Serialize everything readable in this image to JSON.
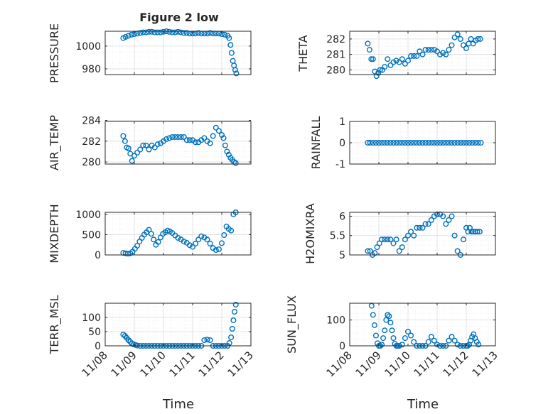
{
  "figure_title": "Figure 2 low",
  "x_axis_label": "Time",
  "x_tick_labels": [
    "11/08",
    "11/09",
    "11/10",
    "11/11",
    "11/12",
    "11/13"
  ],
  "colors": {
    "marker": "#0072BD",
    "axis": "#262626",
    "grid": "#dcdcdc",
    "minor_grid": "#ececec"
  },
  "chart_data": [
    {
      "type": "scatter",
      "name": "pressure",
      "ylabel": "PRESSURE",
      "yticks": [
        980,
        1000
      ],
      "ylim": [
        975,
        1013
      ],
      "xlim": [
        0,
        5
      ],
      "x": [
        0.62,
        0.7,
        0.8,
        0.9,
        1.0,
        1.1,
        1.2,
        1.3,
        1.4,
        1.5,
        1.6,
        1.7,
        1.8,
        1.9,
        2.0,
        2.1,
        2.2,
        2.3,
        2.4,
        2.5,
        2.6,
        2.7,
        2.8,
        2.9,
        3.0,
        3.1,
        3.2,
        3.3,
        3.4,
        3.5,
        3.6,
        3.7,
        3.8,
        3.9,
        4.0,
        4.1,
        4.2,
        4.25,
        4.3,
        4.34,
        4.38,
        4.42,
        4.46,
        4.5
      ],
      "y": [
        1007,
        1008,
        1009,
        1010,
        1010.5,
        1011,
        1011.5,
        1012,
        1012,
        1012.5,
        1012.5,
        1012,
        1012,
        1012,
        1012.5,
        1013,
        1012.5,
        1012,
        1012,
        1012.5,
        1012,
        1011.5,
        1011.5,
        1011,
        1011,
        1011,
        1011.5,
        1011,
        1011,
        1011,
        1011.5,
        1011,
        1011,
        1011,
        1010.5,
        1010,
        1009,
        1007,
        1001,
        994,
        987,
        983,
        979,
        976
      ]
    },
    {
      "type": "scatter",
      "name": "theta",
      "ylabel": "THETA",
      "yticks": [
        280,
        281,
        282
      ],
      "ylim": [
        279.7,
        282.5
      ],
      "xlim": [
        0,
        5
      ],
      "x": [
        0.62,
        0.68,
        0.74,
        0.8,
        0.86,
        0.92,
        0.98,
        1.04,
        1.12,
        1.2,
        1.3,
        1.4,
        1.5,
        1.6,
        1.7,
        1.8,
        1.9,
        2.0,
        2.1,
        2.2,
        2.3,
        2.4,
        2.5,
        2.6,
        2.7,
        2.8,
        2.9,
        3.0,
        3.1,
        3.2,
        3.3,
        3.4,
        3.5,
        3.6,
        3.7,
        3.8,
        3.9,
        4.0,
        4.08,
        4.16,
        4.24,
        4.32,
        4.4,
        4.48
      ],
      "y": [
        281.7,
        281.3,
        280.7,
        280.7,
        279.9,
        279.6,
        279.8,
        280.0,
        280.0,
        280.2,
        280.7,
        280.3,
        280.5,
        280.6,
        280.5,
        280.7,
        280.4,
        280.6,
        280.9,
        280.9,
        280.9,
        281.2,
        281.0,
        281.3,
        281.3,
        281.3,
        281.3,
        281.2,
        281.0,
        281.1,
        281.0,
        281.3,
        281.6,
        282.1,
        282.3,
        282.0,
        281.6,
        281.4,
        281.7,
        282.0,
        281.7,
        281.9,
        282.0,
        282.0
      ]
    },
    {
      "type": "scatter",
      "name": "air_temp",
      "ylabel": "AIR_TEMP",
      "yticks": [
        280,
        282,
        284
      ],
      "ylim": [
        279.8,
        283.9
      ],
      "xlim": [
        0,
        5
      ],
      "x": [
        0.62,
        0.68,
        0.74,
        0.8,
        0.86,
        0.92,
        1.0,
        1.1,
        1.2,
        1.3,
        1.4,
        1.5,
        1.6,
        1.7,
        1.8,
        1.9,
        2.0,
        2.1,
        2.2,
        2.3,
        2.4,
        2.5,
        2.6,
        2.7,
        2.8,
        2.9,
        3.0,
        3.1,
        3.2,
        3.3,
        3.4,
        3.5,
        3.6,
        3.7,
        3.8,
        3.9,
        4.0,
        4.06,
        4.12,
        4.18,
        4.24,
        4.3,
        4.36,
        4.42,
        4.48
      ],
      "y": [
        282.5,
        282.0,
        281.4,
        281.3,
        280.8,
        280.1,
        280.6,
        280.9,
        281.2,
        281.6,
        281.6,
        281.2,
        281.6,
        281.4,
        281.7,
        281.8,
        282.0,
        282.2,
        282.3,
        282.4,
        282.4,
        282.4,
        282.4,
        282.4,
        282.1,
        282.1,
        282.1,
        281.9,
        281.9,
        282.1,
        282.3,
        282.0,
        281.8,
        282.5,
        283.3,
        283.0,
        282.6,
        282.3,
        281.6,
        281.0,
        280.7,
        280.4,
        280.2,
        280.0,
        279.9
      ]
    },
    {
      "type": "scatter",
      "name": "rainfall",
      "ylabel": "RAINFALL",
      "yticks": [
        -1,
        0,
        1
      ],
      "ylim": [
        -1,
        1
      ],
      "xlim": [
        0,
        5
      ],
      "x": [
        0.62,
        0.7,
        0.8,
        0.9,
        1.0,
        1.1,
        1.2,
        1.3,
        1.4,
        1.5,
        1.6,
        1.7,
        1.8,
        1.9,
        2.0,
        2.1,
        2.2,
        2.3,
        2.4,
        2.5,
        2.6,
        2.7,
        2.8,
        2.9,
        3.0,
        3.1,
        3.2,
        3.3,
        3.4,
        3.5,
        3.6,
        3.7,
        3.8,
        3.9,
        4.0,
        4.1,
        4.2,
        4.3,
        4.4,
        4.5
      ],
      "y": [
        0,
        0,
        0,
        0,
        0,
        0,
        0,
        0,
        0,
        0,
        0,
        0,
        0,
        0,
        0,
        0,
        0,
        0,
        0,
        0,
        0,
        0,
        0,
        0,
        0,
        0,
        0,
        0,
        0,
        0,
        0,
        0,
        0,
        0,
        0,
        0,
        0,
        0,
        0,
        0
      ]
    },
    {
      "type": "scatter",
      "name": "mixdepth",
      "ylabel": "MIXDEPTH",
      "yticks": [
        0,
        500,
        1000
      ],
      "ylim": [
        0,
        1050
      ],
      "xlim": [
        0,
        5
      ],
      "x": [
        0.62,
        0.7,
        0.78,
        0.86,
        0.94,
        1.02,
        1.1,
        1.18,
        1.26,
        1.34,
        1.42,
        1.5,
        1.58,
        1.66,
        1.74,
        1.82,
        1.9,
        1.98,
        2.06,
        2.14,
        2.22,
        2.3,
        2.4,
        2.5,
        2.6,
        2.7,
        2.8,
        2.9,
        3.0,
        3.1,
        3.2,
        3.3,
        3.4,
        3.5,
        3.6,
        3.7,
        3.8,
        3.9,
        4.0,
        4.08,
        4.16,
        4.24,
        4.32,
        4.4,
        4.48
      ],
      "y": [
        50,
        40,
        30,
        40,
        80,
        150,
        230,
        330,
        420,
        500,
        560,
        620,
        520,
        380,
        250,
        320,
        430,
        520,
        560,
        600,
        580,
        540,
        480,
        420,
        380,
        330,
        300,
        240,
        200,
        280,
        380,
        460,
        430,
        380,
        280,
        170,
        120,
        140,
        290,
        490,
        700,
        640,
        600,
        1000,
        1050
      ]
    },
    {
      "type": "scatter",
      "name": "h2omixra",
      "ylabel": "H2OMIXRA",
      "yticks": [
        5,
        5.5,
        6
      ],
      "ylim": [
        5,
        6.1
      ],
      "xlim": [
        0,
        5
      ],
      "x": [
        0.62,
        0.7,
        0.78,
        0.86,
        0.94,
        1.02,
        1.1,
        1.2,
        1.3,
        1.4,
        1.5,
        1.6,
        1.7,
        1.8,
        1.9,
        2.0,
        2.1,
        2.2,
        2.3,
        2.4,
        2.5,
        2.6,
        2.7,
        2.8,
        2.9,
        3.0,
        3.1,
        3.2,
        3.3,
        3.4,
        3.5,
        3.6,
        3.7,
        3.8,
        3.9,
        4.0,
        4.06,
        4.12,
        4.18,
        4.24,
        4.3,
        4.38,
        4.46
      ],
      "y": [
        5.1,
        5.1,
        5.0,
        5.05,
        5.2,
        5.3,
        5.4,
        5.4,
        5.4,
        5.4,
        5.3,
        5.4,
        5.1,
        5.2,
        5.4,
        5.5,
        5.6,
        5.5,
        5.7,
        5.7,
        5.7,
        5.8,
        5.8,
        5.9,
        6.0,
        6.05,
        6.05,
        6.0,
        5.8,
        5.9,
        6.0,
        5.5,
        5.1,
        5.0,
        5.4,
        5.7,
        5.6,
        5.7,
        5.6,
        5.6,
        5.6,
        5.6,
        5.6
      ]
    },
    {
      "type": "scatter",
      "name": "terr_msl",
      "ylabel": "TERR_MSL",
      "yticks": [
        0,
        50,
        100
      ],
      "ylim": [
        0,
        150
      ],
      "xlim": [
        0,
        5
      ],
      "x": [
        0.62,
        0.68,
        0.74,
        0.8,
        0.86,
        0.92,
        0.98,
        1.04,
        1.1,
        1.2,
        1.3,
        1.4,
        1.5,
        1.6,
        1.7,
        1.8,
        1.9,
        2.0,
        2.1,
        2.2,
        2.3,
        2.4,
        2.5,
        2.6,
        2.7,
        2.8,
        2.9,
        3.0,
        3.1,
        3.2,
        3.3,
        3.4,
        3.5,
        3.6,
        3.7,
        3.8,
        3.9,
        4.0,
        4.1,
        4.2,
        4.26,
        4.32,
        4.36,
        4.4,
        4.44,
        4.48
      ],
      "y": [
        40,
        35,
        28,
        20,
        14,
        8,
        5,
        3,
        1,
        0,
        0,
        0,
        0,
        0,
        0,
        0,
        0,
        0,
        0,
        0,
        0,
        0,
        0,
        0,
        0,
        0,
        0,
        0,
        0,
        0,
        0,
        20,
        22,
        20,
        0,
        0,
        0,
        0,
        0,
        0,
        10,
        30,
        60,
        90,
        120,
        145
      ]
    },
    {
      "type": "scatter",
      "name": "sun_flux",
      "ylabel": "SUN_FLUX",
      "yticks": [
        0,
        100
      ],
      "ylim": [
        0,
        165
      ],
      "xlim": [
        0,
        5
      ],
      "x": [
        0.75,
        0.8,
        0.85,
        0.9,
        0.95,
        1.0,
        1.05,
        1.1,
        1.15,
        1.2,
        1.25,
        1.3,
        1.35,
        1.4,
        1.45,
        1.5,
        1.55,
        1.6,
        1.65,
        1.7,
        1.8,
        1.9,
        2.0,
        2.1,
        2.2,
        2.3,
        2.4,
        2.5,
        2.6,
        2.7,
        2.8,
        2.9,
        3.0,
        3.1,
        3.2,
        3.3,
        3.4,
        3.5,
        3.6,
        3.7,
        3.8,
        3.9,
        4.0,
        4.05,
        4.1,
        4.15,
        4.2,
        4.25,
        4.3,
        4.36,
        4.42
      ],
      "y": [
        155,
        120,
        80,
        40,
        10,
        0,
        0,
        5,
        30,
        60,
        100,
        120,
        115,
        90,
        60,
        30,
        8,
        0,
        0,
        0,
        5,
        30,
        55,
        40,
        15,
        0,
        0,
        0,
        0,
        15,
        35,
        20,
        5,
        0,
        0,
        0,
        20,
        35,
        20,
        5,
        0,
        0,
        0,
        0,
        5,
        20,
        35,
        45,
        30,
        15,
        5
      ]
    }
  ]
}
